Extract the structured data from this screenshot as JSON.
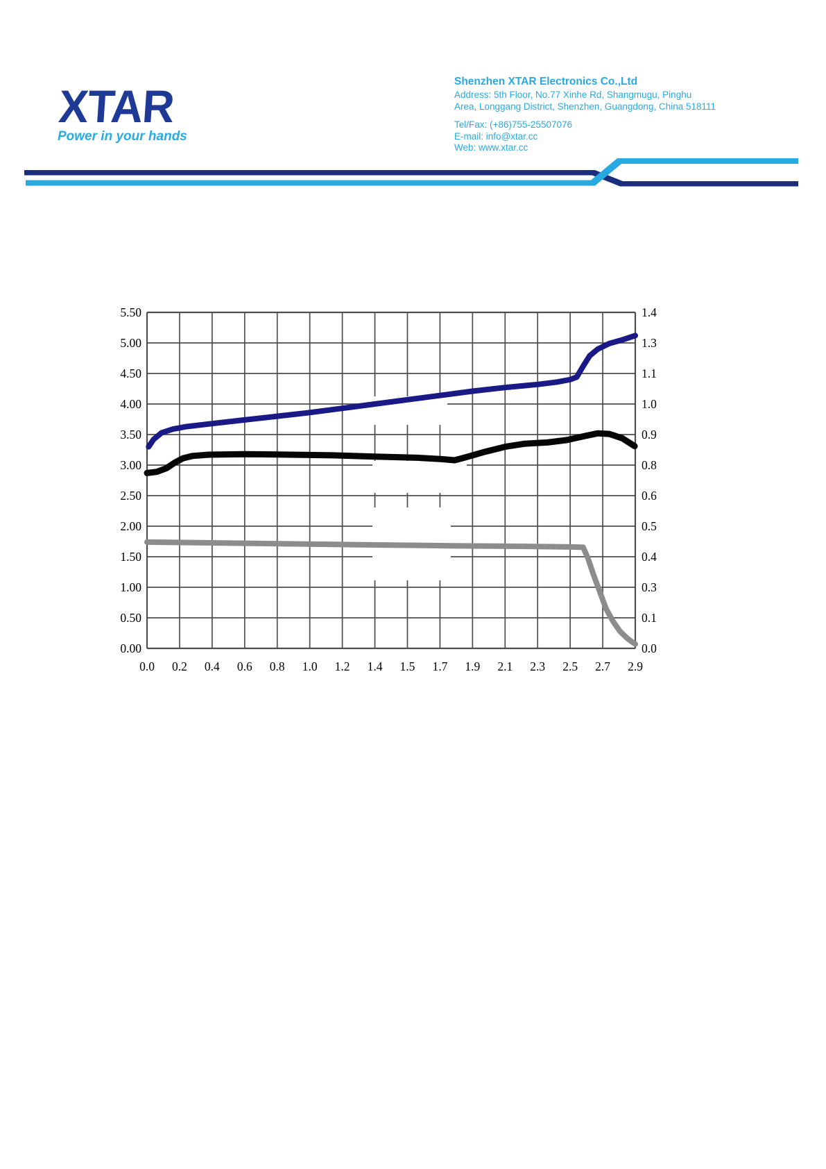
{
  "header": {
    "logo": {
      "text": "XTAR",
      "tagline": "Power in your hands",
      "logo_color": "#1f3a96",
      "tagline_color": "#29abe2"
    },
    "company": {
      "name": "Shenzhen XTAR Electronics Co.,Ltd",
      "address_line1": "Address: 5th Floor, No.77 Xinhe Rd, Shangmugu, Pinghu",
      "address_line2": "Area, Longgang District, Shenzhen, Guangdong, China 518111",
      "tel": "Tel/Fax: (+86)755-25507076",
      "email": "E-mail: info@xtar.cc",
      "web": "Web: www.xtar.cc",
      "text_color": "#2aa9e1"
    },
    "divider": {
      "navy_color": "#1b2d7d",
      "cyan_color": "#29a9e1"
    }
  },
  "chart_data": {
    "type": "line",
    "grid": true,
    "grid_color": "#4d4d4d",
    "x_axis": {
      "labels": [
        "0.0",
        "0.2",
        "0.4",
        "0.6",
        "0.8",
        "1.0",
        "1.2",
        "1.4",
        "1.5",
        "1.7",
        "1.9",
        "2.1",
        "2.3",
        "2.5",
        "2.7",
        "2.9"
      ]
    },
    "y_axis_left": {
      "labels": [
        "5.50",
        "5.00",
        "4.50",
        "4.00",
        "3.50",
        "3.00",
        "2.50",
        "2.00",
        "1.50",
        "1.00",
        "0.50",
        "0.00"
      ],
      "min": 0.0,
      "max": 5.5
    },
    "y_axis_right": {
      "labels": [
        "1.4",
        "1.3",
        "1.1",
        "1.0",
        "0.9",
        "0.8",
        "0.6",
        "0.5",
        "0.4",
        "0.3",
        "0.1",
        "0.0"
      ]
    },
    "series": [
      {
        "name": "navy-voltage-series",
        "color": "#1a1a87",
        "width": 8,
        "points": [
          [
            0.05,
            3.3
          ],
          [
            0.2,
            3.42
          ],
          [
            0.45,
            3.53
          ],
          [
            0.8,
            3.59
          ],
          [
            1.2,
            3.63
          ],
          [
            2,
            3.68
          ],
          [
            3,
            3.74
          ],
          [
            4,
            3.8
          ],
          [
            5,
            3.86
          ],
          [
            6,
            3.93
          ],
          [
            7,
            4.0
          ],
          [
            8,
            4.07
          ],
          [
            9,
            4.14
          ],
          [
            10,
            4.21
          ],
          [
            11,
            4.27
          ],
          [
            12,
            4.32
          ],
          [
            12.6,
            4.36
          ],
          [
            13,
            4.4
          ],
          [
            13.2,
            4.44
          ],
          [
            13.4,
            4.62
          ],
          [
            13.6,
            4.79
          ],
          [
            13.85,
            4.9
          ],
          [
            14.2,
            4.99
          ],
          [
            14.6,
            5.05
          ],
          [
            15,
            5.12
          ]
        ]
      },
      {
        "name": "black-voltage-series",
        "color": "#050505",
        "width": 9,
        "points": [
          [
            0,
            2.87
          ],
          [
            0.3,
            2.89
          ],
          [
            0.6,
            2.95
          ],
          [
            0.85,
            3.04
          ],
          [
            1.1,
            3.11
          ],
          [
            1.4,
            3.15
          ],
          [
            1.9,
            3.17
          ],
          [
            3,
            3.18
          ],
          [
            4.4,
            3.17
          ],
          [
            5.7,
            3.16
          ],
          [
            7,
            3.14
          ],
          [
            8.3,
            3.12
          ],
          [
            9,
            3.1
          ],
          [
            9.45,
            3.08
          ],
          [
            9.8,
            3.13
          ],
          [
            10.4,
            3.22
          ],
          [
            11,
            3.3
          ],
          [
            11.6,
            3.35
          ],
          [
            12.3,
            3.37
          ],
          [
            12.9,
            3.41
          ],
          [
            13.4,
            3.47
          ],
          [
            13.85,
            3.52
          ],
          [
            14.2,
            3.51
          ],
          [
            14.6,
            3.44
          ],
          [
            14.98,
            3.31
          ]
        ]
      },
      {
        "name": "gray-current-series",
        "color": "#8c8c8c",
        "width": 8,
        "points": [
          [
            0,
            1.74
          ],
          [
            3,
            1.72
          ],
          [
            6,
            1.7
          ],
          [
            9.3,
            1.68
          ],
          [
            11.5,
            1.67
          ],
          [
            13,
            1.66
          ],
          [
            13.4,
            1.655
          ],
          [
            13.55,
            1.47
          ],
          [
            13.72,
            1.2
          ],
          [
            13.91,
            0.93
          ],
          [
            14.1,
            0.65
          ],
          [
            14.32,
            0.44
          ],
          [
            14.53,
            0.28
          ],
          [
            14.74,
            0.17
          ],
          [
            14.89,
            0.11
          ],
          [
            15,
            0.07
          ]
        ]
      }
    ]
  }
}
